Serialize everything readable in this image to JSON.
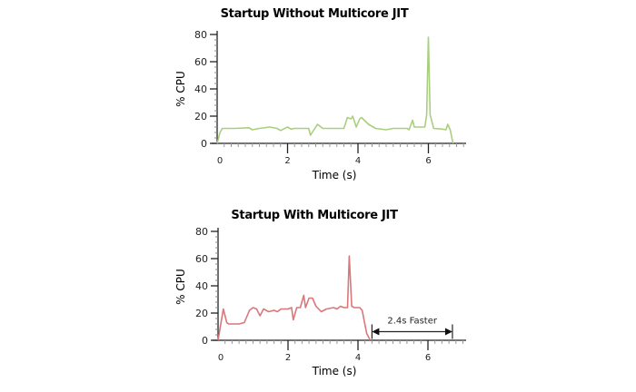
{
  "chart_data": [
    {
      "type": "line",
      "title": "Startup Without Multicore JIT",
      "xlabel": "Time (s)",
      "ylabel": "% CPU",
      "xlim": [
        0,
        7
      ],
      "ylim": [
        0,
        80
      ],
      "xticks": [
        0,
        2,
        4,
        6
      ],
      "yticks": [
        0,
        20,
        40,
        60,
        80
      ],
      "grid": false,
      "legend": null,
      "line_color": "#a9cf7e",
      "series": [
        {
          "name": "CPU",
          "x": [
            0,
            0.08,
            0.15,
            0.5,
            0.9,
            1.0,
            1.2,
            1.5,
            1.7,
            1.8,
            2.0,
            2.1,
            2.2,
            2.4,
            2.6,
            2.65,
            2.85,
            3.0,
            3.4,
            3.6,
            3.7,
            3.8,
            3.85,
            3.95,
            4.05,
            4.1,
            4.3,
            4.5,
            4.8,
            5.0,
            5.2,
            5.4,
            5.45,
            5.55,
            5.6,
            5.9,
            5.95,
            6.0,
            6.05,
            6.15,
            6.4,
            6.5,
            6.55,
            6.62,
            6.7
          ],
          "values": [
            0,
            8,
            11,
            11,
            11.5,
            10,
            11,
            12,
            11,
            9.5,
            12,
            10.5,
            11,
            11,
            11,
            6,
            14,
            11,
            11,
            11,
            19,
            18,
            20,
            12,
            18,
            19,
            14,
            11,
            10,
            11,
            11,
            11,
            10,
            17,
            12,
            12,
            21,
            78,
            21,
            11,
            10.5,
            10,
            14,
            10,
            0
          ]
        }
      ],
      "annotations": []
    },
    {
      "type": "line",
      "title": "Startup With Multicore JIT",
      "xlabel": "Time (s)",
      "ylabel": "% CPU",
      "xlim": [
        0,
        7
      ],
      "ylim": [
        0,
        80
      ],
      "xticks": [
        0,
        2,
        4,
        6
      ],
      "yticks": [
        0,
        20,
        40,
        60,
        80
      ],
      "grid": false,
      "legend": null,
      "line_color": "#d9777a",
      "series": [
        {
          "name": "CPU",
          "x": [
            0,
            0.15,
            0.25,
            0.3,
            0.6,
            0.75,
            0.9,
            1.0,
            1.1,
            1.2,
            1.3,
            1.45,
            1.6,
            1.7,
            1.8,
            2.0,
            2.1,
            2.15,
            2.25,
            2.35,
            2.45,
            2.5,
            2.6,
            2.7,
            2.8,
            2.95,
            3.1,
            3.3,
            3.4,
            3.5,
            3.6,
            3.7,
            3.75,
            3.82,
            3.9,
            4.05,
            4.12,
            4.25,
            4.35
          ],
          "values": [
            0,
            23,
            13,
            12,
            12,
            13,
            22,
            24,
            23,
            18,
            23,
            21,
            22,
            21,
            23,
            23,
            24,
            15,
            24,
            24,
            33,
            24,
            31,
            31,
            25,
            21,
            23,
            24,
            23,
            25,
            24,
            24,
            62,
            25,
            24,
            24,
            22,
            5,
            0
          ]
        }
      ],
      "annotations": [
        {
          "text": "2.4s Faster",
          "type": "double-arrow",
          "x_start": 4.4,
          "x_end": 6.7,
          "y": 5
        }
      ]
    }
  ]
}
